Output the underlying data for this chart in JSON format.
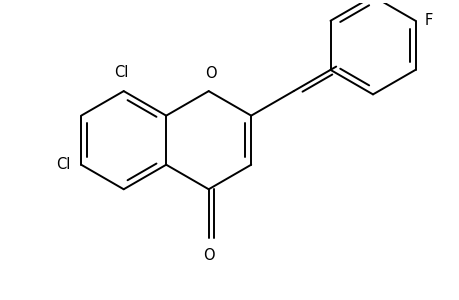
{
  "bg_color": "#ffffff",
  "bond_color": "#000000",
  "line_width": 1.4,
  "font_size": 10.5,
  "figsize": [
    4.6,
    3.0
  ],
  "dpi": 100,
  "xlim": [
    -3.2,
    5.8
  ],
  "ylim": [
    -3.2,
    2.8
  ]
}
